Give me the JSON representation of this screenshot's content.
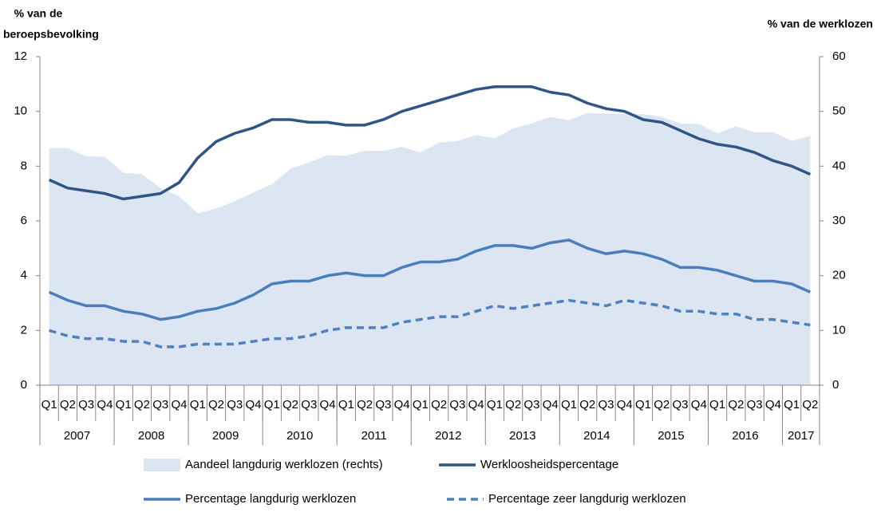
{
  "chart_data": {
    "type": "line",
    "y_label": [
      "% van de",
      "beroepsbevolking"
    ],
    "y2_label": "% van de werklozen",
    "categories": [
      "Q1",
      "Q2",
      "Q3",
      "Q4",
      "Q1",
      "Q2",
      "Q3",
      "Q4",
      "Q1",
      "Q2",
      "Q3",
      "Q4",
      "Q1",
      "Q2",
      "Q3",
      "Q4",
      "Q1",
      "Q2",
      "Q3",
      "Q4",
      "Q1",
      "Q2",
      "Q3",
      "Q4",
      "Q1",
      "Q2",
      "Q3",
      "Q4",
      "Q1",
      "Q2",
      "Q3",
      "Q4",
      "Q1",
      "Q2",
      "Q3",
      "Q4",
      "Q1",
      "Q2",
      "Q3",
      "Q4",
      "Q1",
      "Q2"
    ],
    "years": [
      "2007",
      "2008",
      "2009",
      "2010",
      "2011",
      "2012",
      "2013",
      "2014",
      "2015",
      "2016",
      "2017"
    ],
    "ylim": [
      0,
      12
    ],
    "yticks": [
      0,
      2,
      4,
      6,
      8,
      10,
      12
    ],
    "y2lim": [
      0,
      60
    ],
    "y2ticks": [
      0,
      10,
      20,
      30,
      40,
      50,
      60
    ],
    "series": [
      {
        "name": "Aandeel langdurig werklozen (rechts)",
        "type": "area",
        "axis": "y2",
        "color": "#dce6f2",
        "values": [
          43.3,
          43.3,
          41.8,
          41.7,
          38.8,
          38.5,
          36.0,
          34.5,
          31.4,
          32.3,
          33.6,
          35.2,
          36.7,
          39.5,
          40.7,
          42.0,
          41.9,
          42.8,
          42.8,
          43.5,
          42.5,
          44.3,
          44.6,
          45.7,
          45.1,
          46.9,
          47.8,
          49.0,
          48.4,
          49.7,
          49.6,
          49.6,
          49.5,
          49.0,
          47.8,
          47.7,
          46.0,
          47.3,
          46.2,
          46.2,
          44.6,
          45.5
        ]
      },
      {
        "name": "Werkloosheidspercentage",
        "type": "line",
        "color": "#2f5587",
        "dashed": false,
        "values": [
          7.5,
          7.2,
          7.1,
          7.0,
          6.8,
          6.9,
          7.0,
          7.4,
          8.3,
          8.9,
          9.2,
          9.4,
          9.7,
          9.7,
          9.6,
          9.6,
          9.5,
          9.5,
          9.7,
          10.0,
          10.2,
          10.4,
          10.6,
          10.8,
          10.9,
          10.9,
          10.9,
          10.7,
          10.6,
          10.3,
          10.1,
          10.0,
          9.7,
          9.6,
          9.3,
          9.0,
          8.8,
          8.7,
          8.5,
          8.2,
          8.0,
          7.7
        ]
      },
      {
        "name": "Percentage langdurig werklozen",
        "type": "line",
        "color": "#4a7ebb",
        "dashed": false,
        "values": [
          3.4,
          3.1,
          2.9,
          2.9,
          2.7,
          2.6,
          2.4,
          2.5,
          2.7,
          2.8,
          3.0,
          3.3,
          3.7,
          3.8,
          3.8,
          4.0,
          4.1,
          4.0,
          4.0,
          4.3,
          4.5,
          4.5,
          4.6,
          4.9,
          5.1,
          5.1,
          5.0,
          5.2,
          5.3,
          5.0,
          4.8,
          4.9,
          4.8,
          4.6,
          4.3,
          4.3,
          4.2,
          4.0,
          3.8,
          3.8,
          3.7,
          3.4
        ]
      },
      {
        "name": "Percentage zeer langdurig werklozen",
        "type": "line",
        "color": "#4f81bd",
        "dashed": true,
        "values": [
          2.0,
          1.8,
          1.7,
          1.7,
          1.6,
          1.6,
          1.4,
          1.4,
          1.5,
          1.5,
          1.5,
          1.6,
          1.7,
          1.7,
          1.8,
          2.0,
          2.1,
          2.1,
          2.1,
          2.3,
          2.4,
          2.5,
          2.5,
          2.7,
          2.9,
          2.8,
          2.9,
          3.0,
          3.1,
          3.0,
          2.9,
          3.1,
          3.0,
          2.9,
          2.7,
          2.7,
          2.6,
          2.6,
          2.4,
          2.4,
          2.3,
          2.2
        ]
      }
    ]
  }
}
